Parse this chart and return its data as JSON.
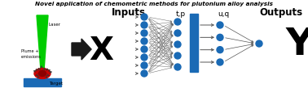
{
  "title": "Novel application of chemometric methods for plutonium alloy analysis",
  "title_fontsize": 5.2,
  "bg_color": "#ffffff",
  "laser_beam_color": "#00cc00",
  "plume_color": "#cc0000",
  "plume_dark_color": "#8b0000",
  "target_platform_color": "#1a6ab5",
  "node_color": "#1a6ab5",
  "rect_color": "#1a6ab5",
  "arrow_dark": "#1a1a1a",
  "arrow_gray": "#555555",
  "text_color": "#000000",
  "inputs_label": "Inputs",
  "outputs_label": "Outputs",
  "x_label": "X",
  "y_label": "Y",
  "tp_label": "t,p",
  "uq_label": "u,q",
  "laser_label": "Laser",
  "plume_label": "Plume +\nemissions",
  "target_label": "Target",
  "figsize": [
    3.78,
    1.09
  ],
  "dpi": 100,
  "figW": 378,
  "figH": 109
}
